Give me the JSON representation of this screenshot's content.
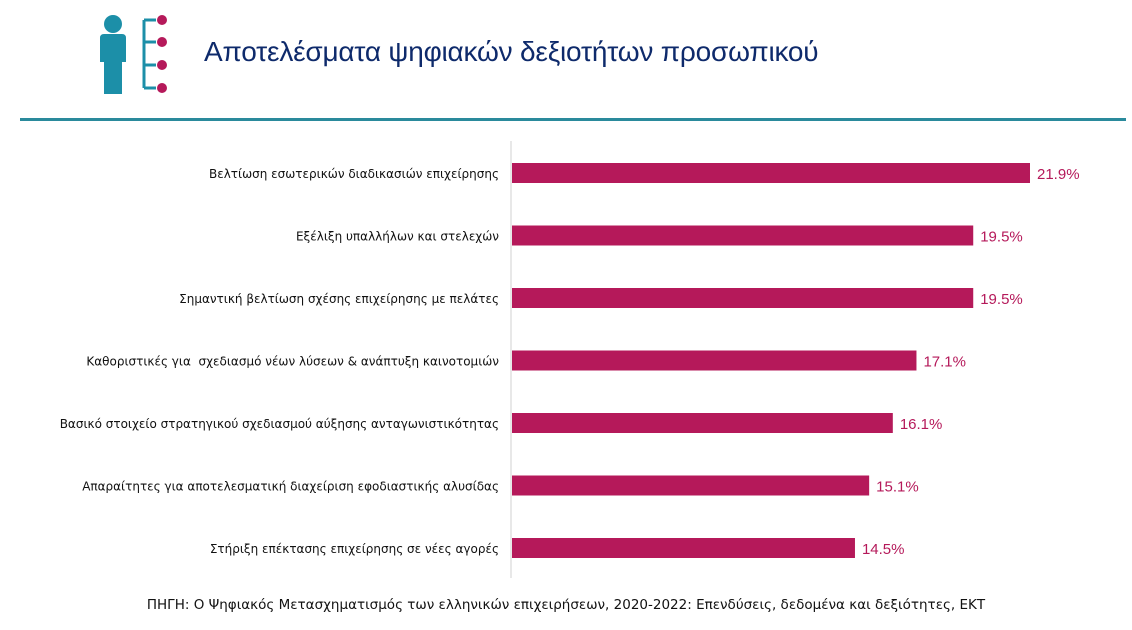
{
  "page_title": "Αποτελέσματα ψηφιακών δεξιοτήτων προσωπικού",
  "header_icon": "person-list-icon",
  "source": "ΠΗΓΗ: Ο Ψηφιακός Μετασχηματισμός των ελληνικών επιχειρήσεων, 2020-2022: Επενδύσεις, δεδομένα και δεξιότητες, ΕΚΤ",
  "colors": {
    "bar": "#b5195a",
    "value_label": "#b5195a",
    "title": "#0e2a6b",
    "rule": "#2a8a9c",
    "icon_body": "#1c8fa8",
    "icon_dots": "#b5195a"
  },
  "chart_data": {
    "type": "bar",
    "orientation": "horizontal",
    "categories": [
      "Βελτίωση εσωτερικών διαδικασιών επιχείρησης",
      "Εξέλιξη υπαλλήλων και στελεχών",
      "Σημαντική βελτίωση σχέσης επιχείρησης με πελάτες",
      "Καθοριστικές για  σχεδιασμό νέων λύσεων & ανάπτυξη καινοτομιών",
      "Βασικό στοιχείο στρατηγικού σχεδιασμού αύξησης ανταγωνιστικότητας",
      "Απαραίτητες για αποτελεσματική διαχείριση εφοδιαστικής αλυσίδας",
      "Στήριξη επέκτασης επιχείρησης σε νέες αγορές"
    ],
    "values": [
      21.9,
      19.5,
      19.5,
      17.1,
      16.1,
      15.1,
      14.5
    ],
    "value_labels": [
      "21.9%",
      "19.5%",
      "19.5%",
      "17.1%",
      "16.1%",
      "15.1%",
      "14.5%"
    ],
    "xlim": [
      0,
      22
    ],
    "grid": false,
    "legend": "none"
  }
}
